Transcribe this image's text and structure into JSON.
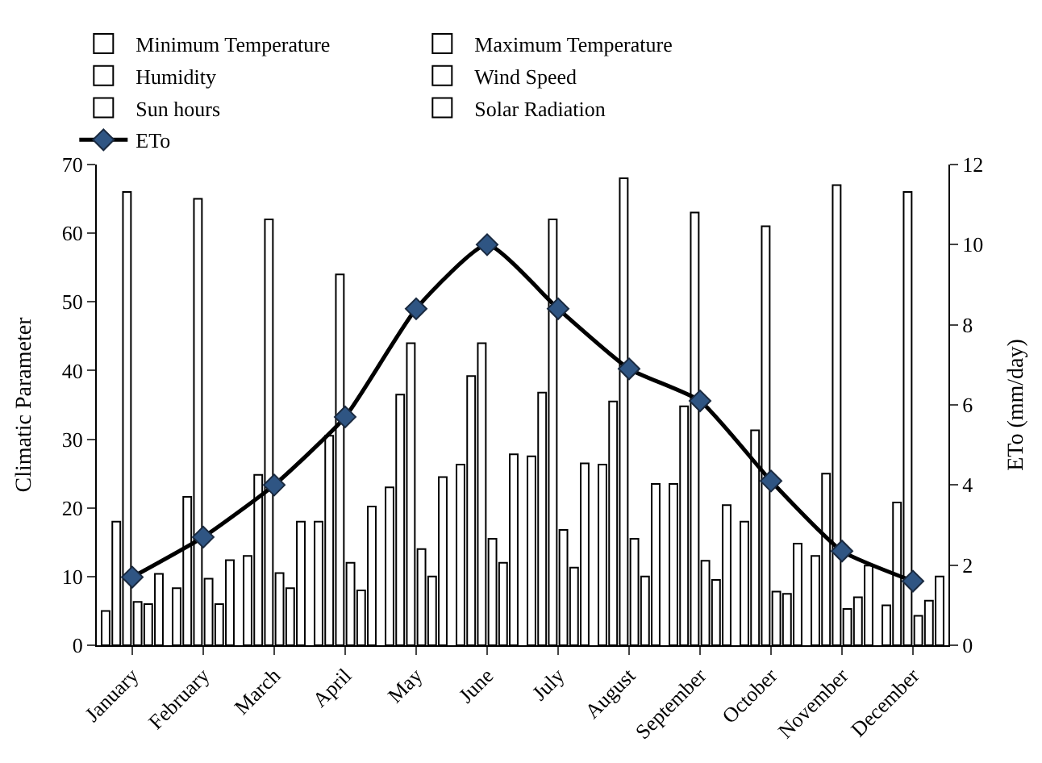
{
  "chart_data": {
    "type": "bar",
    "categories": [
      "January",
      "February",
      "March",
      "April",
      "May",
      "June",
      "July",
      "August",
      "September",
      "October",
      "November",
      "December"
    ],
    "ylabel": "Climatic Parameter",
    "y2label": "ETo (mm/day)",
    "ylim": [
      0,
      70
    ],
    "yticks": [
      0,
      10,
      20,
      30,
      40,
      50,
      60,
      70
    ],
    "y2lim": [
      0,
      12
    ],
    "y2ticks": [
      0,
      2,
      4,
      6,
      8,
      10,
      12
    ],
    "legend": "top",
    "series": [
      {
        "name": "Minimum Temperature",
        "color": "#ffffff",
        "values": [
          5,
          8.3,
          13,
          18,
          23,
          26.3,
          27.5,
          26.3,
          23.5,
          18,
          13,
          5.8
        ]
      },
      {
        "name": "Maximum Temperature",
        "color": "#ffffff",
        "values": [
          18,
          21.6,
          24.8,
          30.5,
          36.5,
          39.2,
          36.8,
          35.5,
          34.8,
          31.3,
          25,
          20.8
        ]
      },
      {
        "name": "Humidity",
        "color": "#ffffff",
        "values": [
          66,
          65,
          62,
          54,
          44,
          44,
          62,
          68,
          63,
          61,
          67,
          66
        ]
      },
      {
        "name": "Wind Speed",
        "color": "#ffffff",
        "values": [
          6.3,
          9.7,
          10.5,
          12,
          14,
          15.5,
          16.8,
          15.5,
          12.3,
          7.8,
          5.3,
          4.3
        ]
      },
      {
        "name": "Sun hours",
        "color": "#ffffff",
        "values": [
          6,
          6,
          8.3,
          8,
          10,
          12,
          11.3,
          10,
          9.5,
          7.5,
          7,
          6.5
        ]
      },
      {
        "name": "Solar Radiation",
        "color": "#ffffff",
        "values": [
          10.4,
          12.4,
          18,
          20.2,
          24.5,
          27.8,
          26.5,
          23.5,
          20.4,
          14.8,
          11.6,
          10
        ]
      },
      {
        "name": "ETo",
        "type": "line",
        "axis": "y2",
        "marker": "diamond",
        "color": "#000000",
        "values": [
          1.7,
          2.7,
          4.0,
          5.7,
          8.4,
          10.0,
          8.4,
          6.9,
          6.1,
          4.1,
          2.35,
          1.6
        ]
      }
    ]
  }
}
